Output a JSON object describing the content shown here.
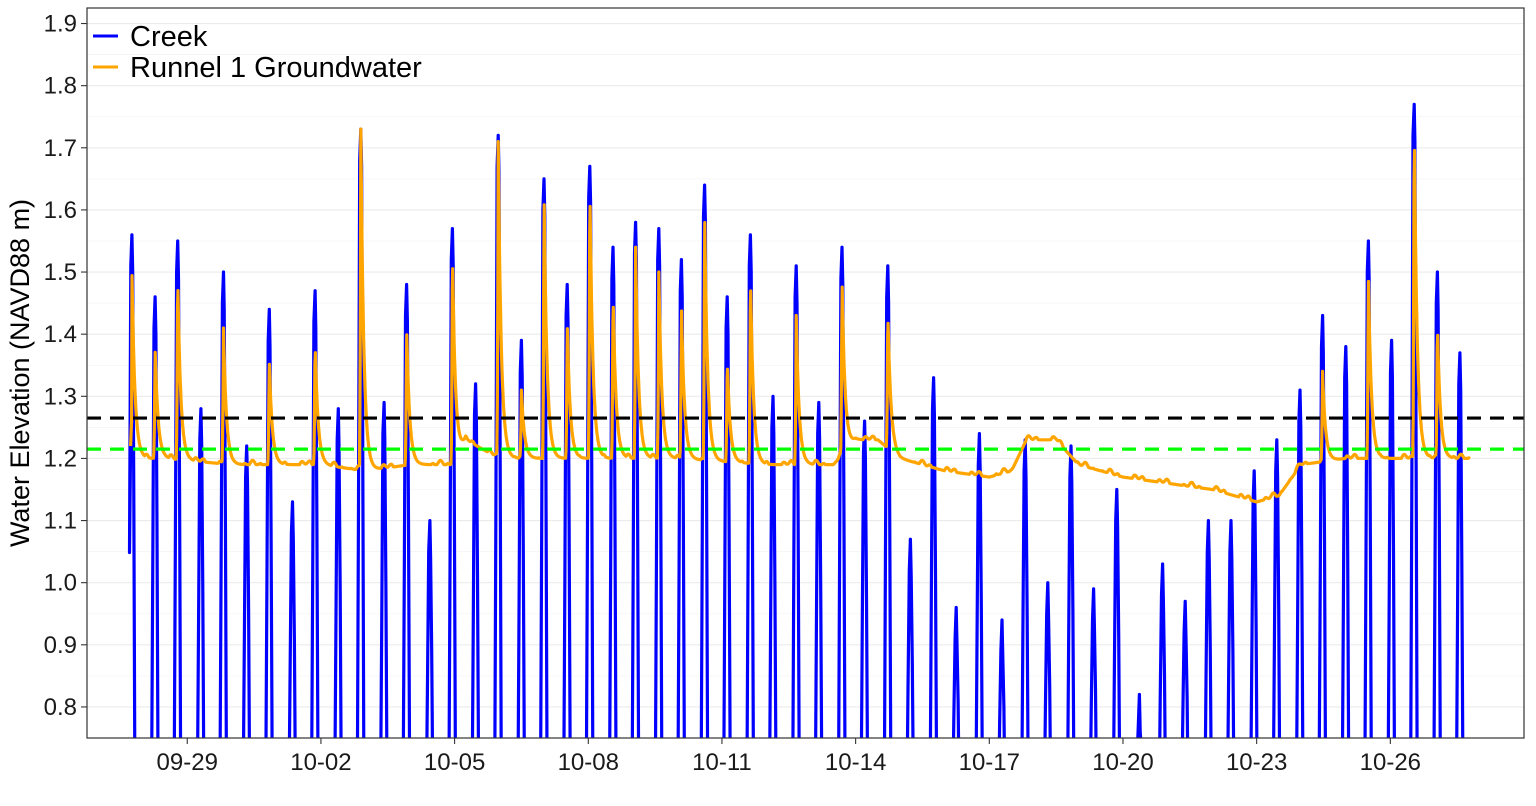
{
  "chart_data": {
    "type": "line",
    "title": "",
    "xlabel": "",
    "ylabel": "Water Elevation (NAVD88 m)",
    "x_range": [
      "2025-09-26T18:00",
      "2025-10-29T00:00"
    ],
    "ylim": [
      0.75,
      1.925
    ],
    "y_ticks": [
      0.8,
      0.9,
      1.0,
      1.1,
      1.2,
      1.3,
      1.4,
      1.5,
      1.6,
      1.7,
      1.8,
      1.9
    ],
    "y_tick_labels": [
      "0.8",
      "0.9",
      "1.0",
      "1.1",
      "1.2",
      "1.3",
      "1.4",
      "1.5",
      "1.6",
      "1.7",
      "1.8",
      "1.9"
    ],
    "x_ticks": [
      "2025-09-29",
      "2025-10-02",
      "2025-10-05",
      "2025-10-08",
      "2025-10-11",
      "2025-10-14",
      "2025-10-17",
      "2025-10-20",
      "2025-10-23",
      "2025-10-26"
    ],
    "x_tick_labels": [
      "09-29",
      "10-02",
      "10-05",
      "10-08",
      "10-11",
      "10-14",
      "10-17",
      "10-20",
      "10-23",
      "10-26"
    ],
    "grid": true,
    "legend_position": "top-left",
    "reference_lines": [
      {
        "y": 1.265,
        "color": "#000000",
        "style": "dashed"
      },
      {
        "y": 1.215,
        "color": "#00ff00",
        "style": "dashed"
      }
    ],
    "series": [
      {
        "name": "Creek",
        "color": "#0000ff",
        "peaks": [
          {
            "t": "2025-09-27T18:10",
            "v": 1.56
          },
          {
            "t": "2025-09-28T06:40",
            "v": 1.46
          },
          {
            "t": "2025-09-28T18:50",
            "v": 1.55
          },
          {
            "t": "2025-09-29T07:20",
            "v": 1.28
          },
          {
            "t": "2025-09-29T19:30",
            "v": 1.5
          },
          {
            "t": "2025-09-30T08:00",
            "v": 1.22
          },
          {
            "t": "2025-09-30T20:10",
            "v": 1.44
          },
          {
            "t": "2025-10-01T08:40",
            "v": 1.13
          },
          {
            "t": "2025-10-01T20:50",
            "v": 1.47
          },
          {
            "t": "2025-10-02T09:20",
            "v": 1.28
          },
          {
            "t": "2025-10-02T21:30",
            "v": 1.73
          },
          {
            "t": "2025-10-03T10:00",
            "v": 1.29
          },
          {
            "t": "2025-10-03T22:10",
            "v": 1.48
          },
          {
            "t": "2025-10-04T10:40",
            "v": 1.1
          },
          {
            "t": "2025-10-04T22:50",
            "v": 1.57
          },
          {
            "t": "2025-10-05T11:20",
            "v": 1.32
          },
          {
            "t": "2025-10-05T23:30",
            "v": 1.72
          },
          {
            "t": "2025-10-06T12:00",
            "v": 1.39
          },
          {
            "t": "2025-10-07T00:10",
            "v": 1.65
          },
          {
            "t": "2025-10-07T12:40",
            "v": 1.48
          },
          {
            "t": "2025-10-08T00:50",
            "v": 1.67
          },
          {
            "t": "2025-10-08T13:20",
            "v": 1.54
          },
          {
            "t": "2025-10-09T01:30",
            "v": 1.58
          },
          {
            "t": "2025-10-09T14:00",
            "v": 1.57
          },
          {
            "t": "2025-10-10T02:10",
            "v": 1.52
          },
          {
            "t": "2025-10-10T14:40",
            "v": 1.64
          },
          {
            "t": "2025-10-11T02:50",
            "v": 1.46
          },
          {
            "t": "2025-10-11T15:20",
            "v": 1.56
          },
          {
            "t": "2025-10-12T03:30",
            "v": 1.3
          },
          {
            "t": "2025-10-12T16:00",
            "v": 1.51
          },
          {
            "t": "2025-10-13T04:10",
            "v": 1.29
          },
          {
            "t": "2025-10-13T16:40",
            "v": 1.54
          },
          {
            "t": "2025-10-14T04:50",
            "v": 1.26
          },
          {
            "t": "2025-10-14T17:20",
            "v": 1.51
          },
          {
            "t": "2025-10-15T05:30",
            "v": 1.07
          },
          {
            "t": "2025-10-15T18:00",
            "v": 1.33
          },
          {
            "t": "2025-10-16T06:10",
            "v": 0.96
          },
          {
            "t": "2025-10-16T18:40",
            "v": 1.24
          },
          {
            "t": "2025-10-17T06:50",
            "v": 0.94
          },
          {
            "t": "2025-10-17T19:20",
            "v": 1.23
          },
          {
            "t": "2025-10-18T07:30",
            "v": 1.0
          },
          {
            "t": "2025-10-18T20:00",
            "v": 1.22
          },
          {
            "t": "2025-10-19T08:10",
            "v": 0.99
          },
          {
            "t": "2025-10-19T20:40",
            "v": 1.15
          },
          {
            "t": "2025-10-20T08:50",
            "v": 0.82
          },
          {
            "t": "2025-10-20T21:20",
            "v": 1.03
          },
          {
            "t": "2025-10-21T09:30",
            "v": 0.97
          },
          {
            "t": "2025-10-21T22:00",
            "v": 1.1
          },
          {
            "t": "2025-10-22T10:10",
            "v": 1.1
          },
          {
            "t": "2025-10-22T22:40",
            "v": 1.18
          },
          {
            "t": "2025-10-23T10:50",
            "v": 1.23
          },
          {
            "t": "2025-10-23T23:20",
            "v": 1.31
          },
          {
            "t": "2025-10-24T11:30",
            "v": 1.43
          },
          {
            "t": "2025-10-25T00:00",
            "v": 1.38
          },
          {
            "t": "2025-10-25T12:10",
            "v": 1.55
          },
          {
            "t": "2025-10-26T00:40",
            "v": 1.39
          },
          {
            "t": "2025-10-26T12:50",
            "v": 1.77
          },
          {
            "t": "2025-10-27T01:20",
            "v": 1.5
          },
          {
            "t": "2025-10-27T13:30",
            "v": 1.37
          }
        ],
        "trough_below": 0.75
      },
      {
        "name": "Runnel 1 Groundwater",
        "color": "#ffa500",
        "peaks": [
          {
            "t": "2025-09-27T18:10",
            "v": 1.51
          },
          {
            "t": "2025-09-28T06:40",
            "v": 1.38
          },
          {
            "t": "2025-09-28T18:50",
            "v": 1.5
          },
          {
            "t": "2025-09-29T19:30",
            "v": 1.41
          },
          {
            "t": "2025-09-30T20:10",
            "v": 1.36
          },
          {
            "t": "2025-10-01T20:50",
            "v": 1.39
          },
          {
            "t": "2025-10-02T21:30",
            "v": 1.73
          },
          {
            "t": "2025-10-03T22:10",
            "v": 1.41
          },
          {
            "t": "2025-10-04T22:50",
            "v": 1.54
          },
          {
            "t": "2025-10-05T23:30",
            "v": 1.71
          },
          {
            "t": "2025-10-06T12:00",
            "v": 1.31
          },
          {
            "t": "2025-10-07T00:10",
            "v": 1.63
          },
          {
            "t": "2025-10-07T12:40",
            "v": 1.42
          },
          {
            "t": "2025-10-08T00:50",
            "v": 1.65
          },
          {
            "t": "2025-10-08T13:20",
            "v": 1.47
          },
          {
            "t": "2025-10-09T01:30",
            "v": 1.54
          },
          {
            "t": "2025-10-09T14:00",
            "v": 1.5
          },
          {
            "t": "2025-10-10T02:10",
            "v": 1.45
          },
          {
            "t": "2025-10-10T14:40",
            "v": 1.6
          },
          {
            "t": "2025-10-11T02:50",
            "v": 1.36
          },
          {
            "t": "2025-10-11T15:20",
            "v": 1.5
          },
          {
            "t": "2025-10-12T16:00",
            "v": 1.43
          },
          {
            "t": "2025-10-13T16:40",
            "v": 1.49
          },
          {
            "t": "2025-10-14T17:20",
            "v": 1.44
          },
          {
            "t": "2025-10-24T11:30",
            "v": 1.34
          },
          {
            "t": "2025-10-25T12:10",
            "v": 1.5
          },
          {
            "t": "2025-10-26T12:50",
            "v": 1.75
          },
          {
            "t": "2025-10-27T01:20",
            "v": 1.42
          }
        ],
        "baseline": [
          {
            "t": "2025-09-26T18:00",
            "v": 1.2
          },
          {
            "t": "2025-09-28T12:00",
            "v": 1.2
          },
          {
            "t": "2025-09-30T00:00",
            "v": 1.19
          },
          {
            "t": "2025-10-02T00:00",
            "v": 1.19
          },
          {
            "t": "2025-10-03T00:00",
            "v": 1.18
          },
          {
            "t": "2025-10-04T00:00",
            "v": 1.19
          },
          {
            "t": "2025-10-05T00:00",
            "v": 1.19
          },
          {
            "t": "2025-10-05T06:00",
            "v": 1.23
          },
          {
            "t": "2025-10-06T00:00",
            "v": 1.2
          },
          {
            "t": "2025-10-08T00:00",
            "v": 1.2
          },
          {
            "t": "2025-10-10T00:00",
            "v": 1.2
          },
          {
            "t": "2025-10-12T00:00",
            "v": 1.19
          },
          {
            "t": "2025-10-13T12:00",
            "v": 1.19
          },
          {
            "t": "2025-10-14T00:00",
            "v": 1.23
          },
          {
            "t": "2025-10-14T12:00",
            "v": 1.23
          },
          {
            "t": "2025-10-15T00:00",
            "v": 1.2
          },
          {
            "t": "2025-10-16T00:00",
            "v": 1.18
          },
          {
            "t": "2025-10-17T00:00",
            "v": 1.17
          },
          {
            "t": "2025-10-17T12:00",
            "v": 1.18
          },
          {
            "t": "2025-10-17T20:00",
            "v": 1.23
          },
          {
            "t": "2025-10-18T12:00",
            "v": 1.23
          },
          {
            "t": "2025-10-19T00:00",
            "v": 1.19
          },
          {
            "t": "2025-10-20T00:00",
            "v": 1.17
          },
          {
            "t": "2025-10-21T00:00",
            "v": 1.16
          },
          {
            "t": "2025-10-22T00:00",
            "v": 1.15
          },
          {
            "t": "2025-10-23T00:00",
            "v": 1.13
          },
          {
            "t": "2025-10-23T12:00",
            "v": 1.14
          },
          {
            "t": "2025-10-24T00:00",
            "v": 1.19
          },
          {
            "t": "2025-10-25T00:00",
            "v": 1.2
          },
          {
            "t": "2025-10-26T00:00",
            "v": 1.2
          },
          {
            "t": "2025-10-27T12:00",
            "v": 1.2
          }
        ]
      }
    ]
  }
}
